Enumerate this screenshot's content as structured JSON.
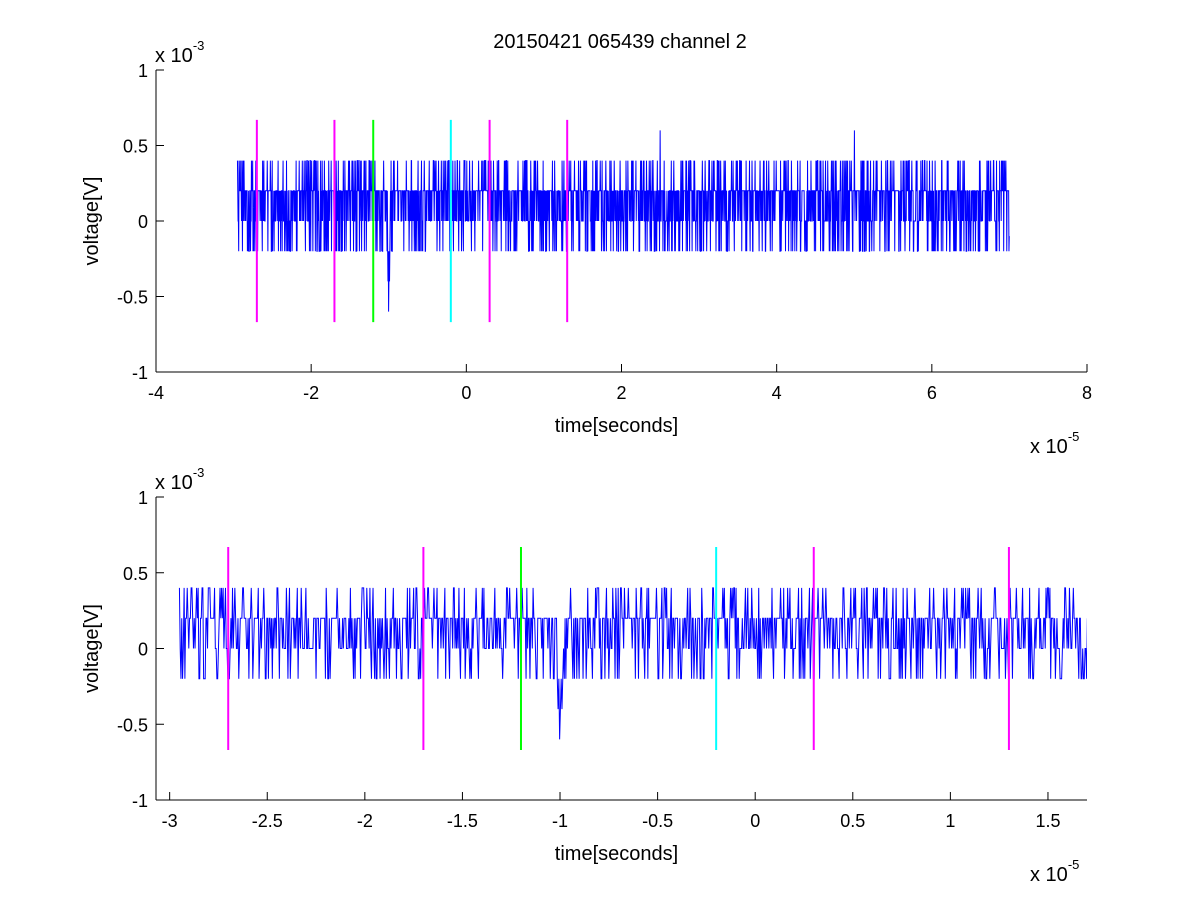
{
  "figure": {
    "title": "20150421 065439 channel 2",
    "background": "#ffffff"
  },
  "colors": {
    "signal": "#0000ff",
    "magenta": "#ff00ff",
    "green": "#00ff00",
    "cyan": "#00ffff",
    "axes": "#000000"
  },
  "chart_data": [
    {
      "type": "line",
      "title": "20150421 065439 channel 2",
      "xlabel": "time[seconds]",
      "ylabel": "voltage[V]",
      "x_exponent_label": {
        "base": "x 10",
        "power": "-5"
      },
      "y_exponent_label": {
        "base": "x 10",
        "power": "-3"
      },
      "xlim": [
        -4e-05,
        8e-05
      ],
      "ylim": [
        -0.001,
        0.001
      ],
      "x_ticks": [
        -4e-05,
        -2e-05,
        0,
        2e-05,
        4e-05,
        6e-05,
        8e-05
      ],
      "x_tick_labels": [
        "-4",
        "-2",
        "0",
        "2",
        "4",
        "6",
        "8"
      ],
      "y_ticks": [
        -0.001,
        -0.0005,
        0,
        0.0005,
        0.001
      ],
      "y_tick_labels": [
        "-1",
        "-0.5",
        "0",
        "0.5",
        "1"
      ],
      "grid": false,
      "legend": "none",
      "series": [
        {
          "color": "#0000ff",
          "x_start": -2.95e-05,
          "x_end": 7e-05,
          "sample_step": 4e-08,
          "y_levels": [
            -0.0006,
            -0.0004,
            -0.0002,
            0,
            0.0002,
            0.0004,
            0.0006
          ],
          "y_range": [
            -0.0006,
            0.0006
          ],
          "notable_points": [
            {
              "x": -2.95e-05,
              "y": 0.0004
            },
            {
              "x": -1e-05,
              "y": -0.0006
            },
            {
              "x": -9.8e-06,
              "y": -0.0004
            },
            {
              "x": 2.5e-05,
              "y": 0.0006
            },
            {
              "x": 5e-05,
              "y": 0.0006
            },
            {
              "x": 7e-05,
              "y": -0.0001
            }
          ]
        }
      ],
      "markers": [
        {
          "x": -2.7e-05,
          "ymin": -0.00067,
          "ymax": 0.00067,
          "color": "#ff00ff"
        },
        {
          "x": -1.7e-05,
          "ymin": -0.00067,
          "ymax": 0.00067,
          "color": "#ff00ff"
        },
        {
          "x": -1.2e-05,
          "ymin": -0.00067,
          "ymax": 0.00067,
          "color": "#00ff00"
        },
        {
          "x": -2e-06,
          "ymin": -0.00067,
          "ymax": 0.00067,
          "color": "#00ffff"
        },
        {
          "x": 3e-06,
          "ymin": -0.00067,
          "ymax": 0.00067,
          "color": "#ff00ff"
        },
        {
          "x": 1.3e-05,
          "ymin": -0.00067,
          "ymax": 0.00067,
          "color": "#ff00ff"
        }
      ]
    },
    {
      "type": "line",
      "title": "",
      "xlabel": "time[seconds]",
      "ylabel": "voltage[V]",
      "x_exponent_label": {
        "base": "x 10",
        "power": "-5"
      },
      "y_exponent_label": {
        "base": "x 10",
        "power": "-3"
      },
      "xlim": [
        -3.07e-05,
        1.7e-05
      ],
      "ylim": [
        -0.001,
        0.001
      ],
      "x_ticks": [
        -3e-05,
        -2.5e-05,
        -2e-05,
        -1.5e-05,
        -1e-05,
        -5e-06,
        0,
        5e-06,
        1e-05,
        1.5e-05
      ],
      "x_tick_labels": [
        "-3",
        "-2.5",
        "-2",
        "-1.5",
        "-1",
        "-0.5",
        "0",
        "0.5",
        "1",
        "1.5"
      ],
      "y_ticks": [
        -0.001,
        -0.0005,
        0,
        0.0005,
        0.001
      ],
      "y_tick_labels": [
        "-1",
        "-0.5",
        "0",
        "0.5",
        "1"
      ],
      "grid": false,
      "legend": "none",
      "series": [
        {
          "color": "#0000ff",
          "x_start": -2.95e-05,
          "x_end": 1.7e-05,
          "sample_step": 4e-08,
          "y_levels": [
            -0.0006,
            -0.0004,
            -0.0002,
            0,
            0.0002,
            0.0004
          ],
          "y_range": [
            -0.0006,
            0.0004
          ],
          "notable_points": [
            {
              "x": -2.95e-05,
              "y": 0.0004
            },
            {
              "x": -2.92e-05,
              "y": -0.0002
            },
            {
              "x": -1e-05,
              "y": -0.0006
            },
            {
              "x": -9.8e-06,
              "y": -0.0004
            },
            {
              "x": 3e-06,
              "y": -0.0002
            },
            {
              "x": 1.7e-05,
              "y": 0.0002
            }
          ]
        }
      ],
      "markers": [
        {
          "x": -2.7e-05,
          "ymin": -0.00067,
          "ymax": 0.00067,
          "color": "#ff00ff"
        },
        {
          "x": -1.7e-05,
          "ymin": -0.00067,
          "ymax": 0.00067,
          "color": "#ff00ff"
        },
        {
          "x": -1.2e-05,
          "ymin": -0.00067,
          "ymax": 0.00067,
          "color": "#00ff00"
        },
        {
          "x": -2e-06,
          "ymin": -0.00067,
          "ymax": 0.00067,
          "color": "#00ffff"
        },
        {
          "x": 3e-06,
          "ymin": -0.00067,
          "ymax": 0.00067,
          "color": "#ff00ff"
        },
        {
          "x": 1.3e-05,
          "ymin": -0.00067,
          "ymax": 0.00067,
          "color": "#ff00ff"
        }
      ]
    }
  ]
}
